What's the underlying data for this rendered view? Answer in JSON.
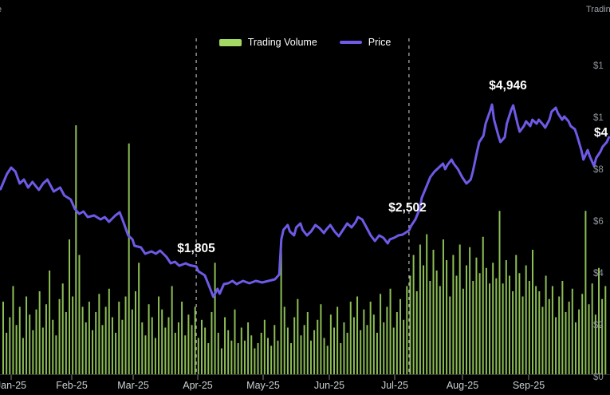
{
  "page": {
    "background": "#000000"
  },
  "header_fragments": {
    "left_text": "e",
    "right_text": "Trading"
  },
  "legend": {
    "items": [
      {
        "label": "Trading Volume",
        "swatch_color": "#a3d865",
        "type": "bar"
      },
      {
        "label": "Price",
        "swatch_color": "#6e5ce6",
        "type": "line"
      }
    ]
  },
  "y_axis_right": {
    "label_fragments": [
      "$1",
      "$1",
      "$8",
      "$6",
      "$4",
      "$2",
      "$0"
    ]
  },
  "current_price_label": "$4",
  "chart_data": {
    "type": "line",
    "title": "",
    "grid": false,
    "legend_position": "top-center",
    "categories": [
      "Jan-25",
      "Feb-25",
      "Mar-25",
      "Apr-25",
      "May-25",
      "Jun-25",
      "Jul-25",
      "Aug-25",
      "Sep-25"
    ],
    "x_axis": {
      "unit": "days since Jan-25 tick",
      "tick_pitch_days": 30.4
    },
    "annotations": [
      {
        "text": "$4,946",
        "day": 226,
        "dashed_line": false
      },
      {
        "text": "$2,502",
        "day": 187,
        "dashed_line": true
      },
      {
        "text": "$1,805",
        "day": 87,
        "dashed_line": true
      }
    ],
    "series": [
      {
        "name": "Trading Volume",
        "chart_type": "bar",
        "color": "#8dbe55",
        "unit": "estimated $ billions, right axis",
        "values": [
          2.8,
          1.6,
          2.2,
          3.4,
          1.9,
          2.6,
          1.4,
          3.0,
          2.3,
          1.7,
          2.5,
          3.2,
          1.8,
          2.7,
          4.0,
          2.1,
          1.5,
          2.9,
          3.5,
          2.4,
          5.2,
          3.0,
          9.6,
          4.6,
          2.6,
          2.0,
          2.8,
          1.7,
          2.4,
          3.1,
          1.9,
          2.6,
          3.3,
          2.2,
          1.6,
          2.8,
          2.1,
          3.0,
          8.9,
          2.5,
          3.2,
          4.3,
          2.0,
          1.5,
          2.7,
          2.2,
          1.4,
          3.0,
          2.5,
          1.8,
          2.2,
          3.4,
          1.6,
          2.0,
          2.8,
          1.5,
          2.3,
          1.9,
          2.6,
          1.4,
          2.1,
          1.8,
          1.2,
          2.4,
          4.3,
          1.6,
          1.0,
          2.2,
          1.7,
          1.3,
          2.5,
          1.2,
          1.8,
          1.3,
          2.0,
          1.5,
          1.0,
          1.2,
          1.6,
          2.1,
          1.4,
          1.1,
          1.9,
          1.3,
          5.2,
          2.6,
          1.8,
          1.2,
          2.2,
          2.9,
          1.5,
          1.9,
          2.4,
          1.3,
          1.7,
          2.1,
          2.7,
          1.4,
          1.1,
          2.3,
          1.8,
          2.6,
          1.2,
          2.0,
          1.6,
          2.8,
          2.2,
          3.0,
          1.7,
          2.5,
          1.9,
          2.8,
          2.3,
          1.6,
          3.1,
          2.0,
          2.6,
          3.3,
          1.8,
          2.4,
          2.9,
          2.1,
          3.4,
          3.8,
          4.6,
          3.2,
          5.0,
          4.2,
          5.4,
          3.6,
          4.8,
          4.0,
          3.4,
          5.2,
          4.4,
          3.0,
          4.6,
          3.8,
          5.0,
          3.3,
          4.2,
          4.9,
          3.6,
          4.5,
          3.9,
          5.3,
          4.1,
          3.5,
          4.3,
          3.7,
          6.3,
          3.5,
          4.4,
          3.8,
          3.2,
          4.6,
          3.9,
          3.0,
          4.2,
          3.6,
          4.8,
          3.4,
          3.2,
          2.6,
          3.8,
          2.9,
          3.4,
          2.2,
          3.0,
          3.6,
          2.4,
          2.8,
          3.3,
          2.0,
          2.5,
          3.1,
          6.3,
          2.7,
          3.5,
          2.3,
          4.1,
          2.9,
          3.4
        ]
      },
      {
        "name": "Price",
        "chart_type": "line",
        "color": "#6d5ae6",
        "unit": "USD",
        "points_day_price": [
          [
            -5,
            3306
          ],
          [
            -2,
            3600
          ],
          [
            0,
            3723
          ],
          [
            2,
            3646
          ],
          [
            4,
            3414
          ],
          [
            6,
            3491
          ],
          [
            8,
            3337
          ],
          [
            10,
            3445
          ],
          [
            13,
            3290
          ],
          [
            15,
            3414
          ],
          [
            17,
            3491
          ],
          [
            20,
            3259
          ],
          [
            23,
            3337
          ],
          [
            25,
            3182
          ],
          [
            28,
            3105
          ],
          [
            30,
            2919
          ],
          [
            32,
            2826
          ],
          [
            34,
            2873
          ],
          [
            36,
            2764
          ],
          [
            39,
            2795
          ],
          [
            42,
            2718
          ],
          [
            44,
            2764
          ],
          [
            46,
            2671
          ],
          [
            49,
            2795
          ],
          [
            51,
            2857
          ],
          [
            53,
            2640
          ],
          [
            55,
            2408
          ],
          [
            57,
            2331
          ],
          [
            58,
            2207
          ],
          [
            61,
            2176
          ],
          [
            63,
            2052
          ],
          [
            66,
            2099
          ],
          [
            68,
            2052
          ],
          [
            70,
            2114
          ],
          [
            73,
            1990
          ],
          [
            75,
            1867
          ],
          [
            77,
            1898
          ],
          [
            79,
            1820
          ],
          [
            82,
            1867
          ],
          [
            84,
            1829
          ],
          [
            87,
            1805
          ],
          [
            88,
            1712
          ],
          [
            91,
            1635
          ],
          [
            93,
            1434
          ],
          [
            95,
            1217
          ],
          [
            97,
            1372
          ],
          [
            98,
            1279
          ],
          [
            100,
            1465
          ],
          [
            102,
            1480
          ],
          [
            104,
            1527
          ],
          [
            106,
            1465
          ],
          [
            109,
            1527
          ],
          [
            112,
            1480
          ],
          [
            115,
            1527
          ],
          [
            118,
            1496
          ],
          [
            121,
            1527
          ],
          [
            124,
            1558
          ],
          [
            126,
            1650
          ],
          [
            127,
            2331
          ],
          [
            128,
            2517
          ],
          [
            130,
            2610
          ],
          [
            131,
            2486
          ],
          [
            133,
            2408
          ],
          [
            134,
            2563
          ],
          [
            136,
            2640
          ],
          [
            137,
            2517
          ],
          [
            139,
            2408
          ],
          [
            141,
            2486
          ],
          [
            143,
            2610
          ],
          [
            145,
            2548
          ],
          [
            147,
            2455
          ],
          [
            148,
            2517
          ],
          [
            150,
            2610
          ],
          [
            152,
            2486
          ],
          [
            154,
            2393
          ],
          [
            156,
            2517
          ],
          [
            158,
            2640
          ],
          [
            160,
            2563
          ],
          [
            162,
            2671
          ],
          [
            163,
            2764
          ],
          [
            165,
            2718
          ],
          [
            167,
            2563
          ],
          [
            169,
            2408
          ],
          [
            171,
            2300
          ],
          [
            173,
            2408
          ],
          [
            175,
            2362
          ],
          [
            177,
            2254
          ],
          [
            178,
            2331
          ],
          [
            180,
            2362
          ],
          [
            182,
            2408
          ],
          [
            184,
            2424
          ],
          [
            187,
            2502
          ],
          [
            188,
            2594
          ],
          [
            190,
            2718
          ],
          [
            192,
            2919
          ],
          [
            193,
            3135
          ],
          [
            195,
            3337
          ],
          [
            197,
            3538
          ],
          [
            199,
            3646
          ],
          [
            201,
            3723
          ],
          [
            203,
            3800
          ],
          [
            204,
            3692
          ],
          [
            205,
            3770
          ],
          [
            207,
            3878
          ],
          [
            208,
            3800
          ],
          [
            210,
            3692
          ],
          [
            212,
            3538
          ],
          [
            214,
            3414
          ],
          [
            216,
            3491
          ],
          [
            217,
            3646
          ],
          [
            219,
            4033
          ],
          [
            220,
            4218
          ],
          [
            222,
            4342
          ],
          [
            223,
            4574
          ],
          [
            225,
            4806
          ],
          [
            226,
            4946
          ],
          [
            227,
            4652
          ],
          [
            229,
            4342
          ],
          [
            230,
            4218
          ],
          [
            232,
            4311
          ],
          [
            233,
            4574
          ],
          [
            235,
            4837
          ],
          [
            236,
            4930
          ],
          [
            238,
            4574
          ],
          [
            239,
            4420
          ],
          [
            241,
            4528
          ],
          [
            242,
            4621
          ],
          [
            244,
            4528
          ],
          [
            245,
            4652
          ],
          [
            247,
            4574
          ],
          [
            248,
            4652
          ],
          [
            250,
            4559
          ],
          [
            251,
            4497
          ],
          [
            253,
            4652
          ],
          [
            254,
            4806
          ],
          [
            256,
            4884
          ],
          [
            257,
            4775
          ],
          [
            259,
            4652
          ],
          [
            260,
            4714
          ],
          [
            262,
            4621
          ],
          [
            263,
            4528
          ],
          [
            265,
            4466
          ],
          [
            266,
            4342
          ],
          [
            268,
            4064
          ],
          [
            269,
            3878
          ],
          [
            271,
            4064
          ],
          [
            272,
            3940
          ],
          [
            274,
            3754
          ],
          [
            275,
            3909
          ],
          [
            277,
            4033
          ],
          [
            278,
            4126
          ],
          [
            280,
            4218
          ],
          [
            281,
            4311
          ]
        ]
      }
    ]
  }
}
